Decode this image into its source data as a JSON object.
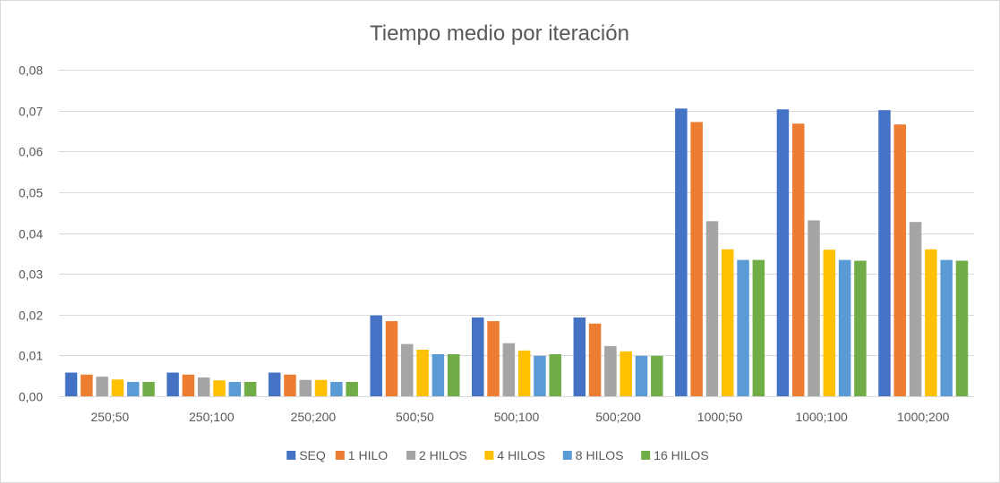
{
  "chart_data": {
    "type": "bar",
    "title": "Tiempo medio por iteración",
    "xlabel": "",
    "ylabel": "",
    "categories": [
      "250;50",
      "250;100",
      "250;200",
      "500;50",
      "500;100",
      "500;200",
      "1000;50",
      "1000;100",
      "1000;200"
    ],
    "ylim": [
      0,
      0.08
    ],
    "yticks": [
      0,
      0.01,
      0.02,
      0.03,
      0.04,
      0.05,
      0.06,
      0.07,
      0.08
    ],
    "ytick_labels": [
      "0,00",
      "0,01",
      "0,02",
      "0,03",
      "0,04",
      "0,05",
      "0,06",
      "0,07",
      "0,08"
    ],
    "grid": true,
    "legend_position": "bottom",
    "series": [
      {
        "name": "SEQ",
        "color": "#4472c4",
        "values": [
          0.0058,
          0.0058,
          0.0058,
          0.0198,
          0.0193,
          0.0193,
          0.0705,
          0.0703,
          0.0701
        ]
      },
      {
        "name": "1 HILO",
        "color": "#ed7d31",
        "values": [
          0.0053,
          0.0053,
          0.0053,
          0.0184,
          0.0184,
          0.0178,
          0.0672,
          0.0668,
          0.0666
        ]
      },
      {
        "name": "2 HILOS",
        "color": "#a5a5a5",
        "values": [
          0.0048,
          0.0046,
          0.004,
          0.0128,
          0.013,
          0.0123,
          0.0429,
          0.0431,
          0.0427
        ]
      },
      {
        "name": "4 HILOS",
        "color": "#ffc000",
        "values": [
          0.0041,
          0.0039,
          0.004,
          0.0114,
          0.0112,
          0.011,
          0.036,
          0.0359,
          0.036
        ]
      },
      {
        "name": "8 HILOS",
        "color": "#5b9bd5",
        "values": [
          0.0035,
          0.0035,
          0.0035,
          0.0103,
          0.0099,
          0.0099,
          0.0334,
          0.0334,
          0.0334
        ]
      },
      {
        "name": "16 HILOS",
        "color": "#70ad47",
        "values": [
          0.0035,
          0.0035,
          0.0035,
          0.0103,
          0.0103,
          0.0099,
          0.0334,
          0.0332,
          0.0332
        ]
      }
    ]
  }
}
